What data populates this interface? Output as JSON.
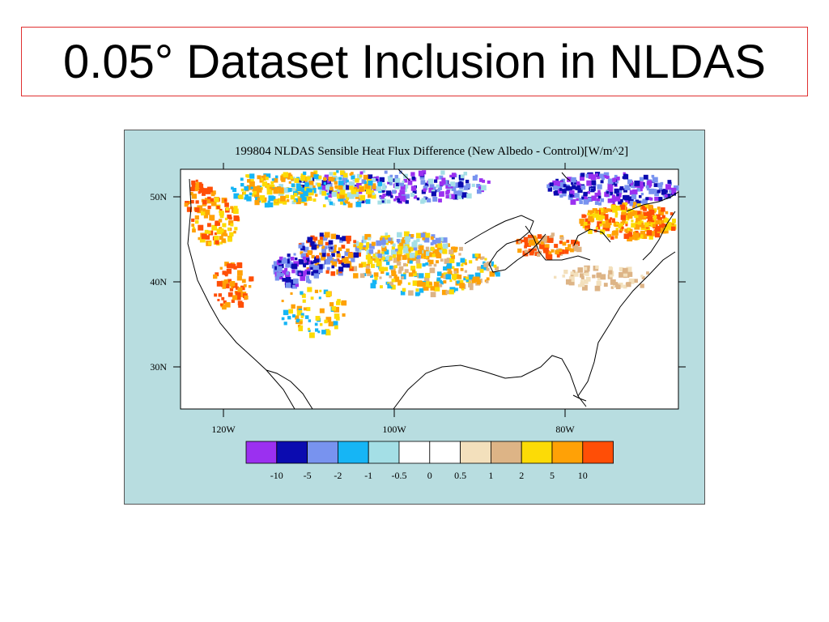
{
  "slide": {
    "title": "0.05° Dataset Inclusion in NLDAS"
  },
  "map": {
    "title": "199804 NLDAS Sensible Heat Flux Difference (New Albedo - Control)[W/m^2]",
    "lat_labels": [
      "50N",
      "40N",
      "30N"
    ],
    "lon_labels": [
      "120W",
      "100W",
      "80W"
    ],
    "background_color": "#b8dde0",
    "legend": {
      "colors": [
        "#9b30f0",
        "#0b0bb0",
        "#7893ef",
        "#16b5f5",
        "#a4dfe6",
        "#ffffff",
        "#ffffff",
        "#f3e0bc",
        "#ddb486",
        "#fcdb06",
        "#ffa106",
        "#ff4e06"
      ],
      "labels": [
        "-10",
        "-5",
        "-2",
        "-1",
        "-0.5",
        "0",
        "0.5",
        "1",
        "2",
        "5",
        "10"
      ]
    }
  }
}
